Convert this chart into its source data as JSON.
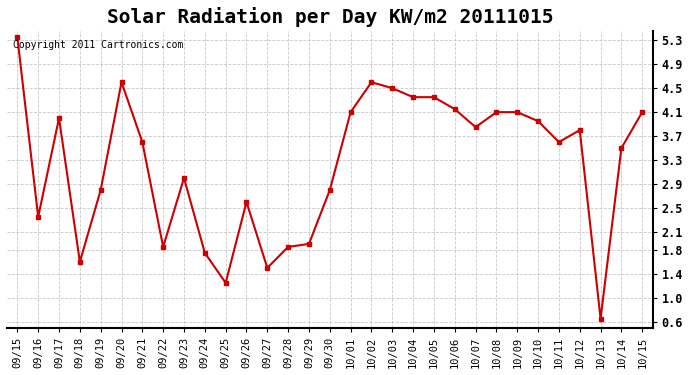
{
  "title": "Solar Radiation per Day KW/m2 20111015",
  "copyright_text": "Copyright 2011 Cartronics.com",
  "dates": [
    "09/15",
    "09/16",
    "09/17",
    "09/18",
    "09/19",
    "09/20",
    "09/21",
    "09/22",
    "09/23",
    "09/24",
    "09/25",
    "09/26",
    "09/27",
    "09/28",
    "09/29",
    "09/30",
    "10/01",
    "10/02",
    "10/03",
    "10/04",
    "10/05",
    "10/06",
    "10/07",
    "10/08",
    "10/09",
    "10/10",
    "10/11",
    "10/12",
    "10/13",
    "10/14",
    "10/15"
  ],
  "values": [
    5.35,
    2.35,
    4.0,
    1.6,
    2.8,
    4.6,
    3.6,
    1.85,
    3.0,
    1.75,
    1.25,
    2.6,
    1.5,
    1.85,
    1.9,
    2.8,
    4.1,
    4.6,
    4.5,
    4.35,
    4.35,
    4.15,
    3.85,
    4.1,
    4.1,
    3.95,
    3.6,
    3.8,
    0.65,
    3.5,
    4.1
  ],
  "yticks": [
    0.6,
    1.0,
    1.4,
    1.8,
    2.1,
    2.5,
    2.9,
    3.3,
    3.7,
    4.1,
    4.5,
    4.9,
    5.3
  ],
  "ylim": [
    0.5,
    5.45
  ],
  "line_color": "#cc0000",
  "marker": "s",
  "marker_size": 3,
  "line_width": 1.5,
  "background_color": "#ffffff",
  "grid_color": "#bbbbbb",
  "title_fontsize": 14,
  "tick_fontsize": 7.5,
  "copyright_fontsize": 7
}
